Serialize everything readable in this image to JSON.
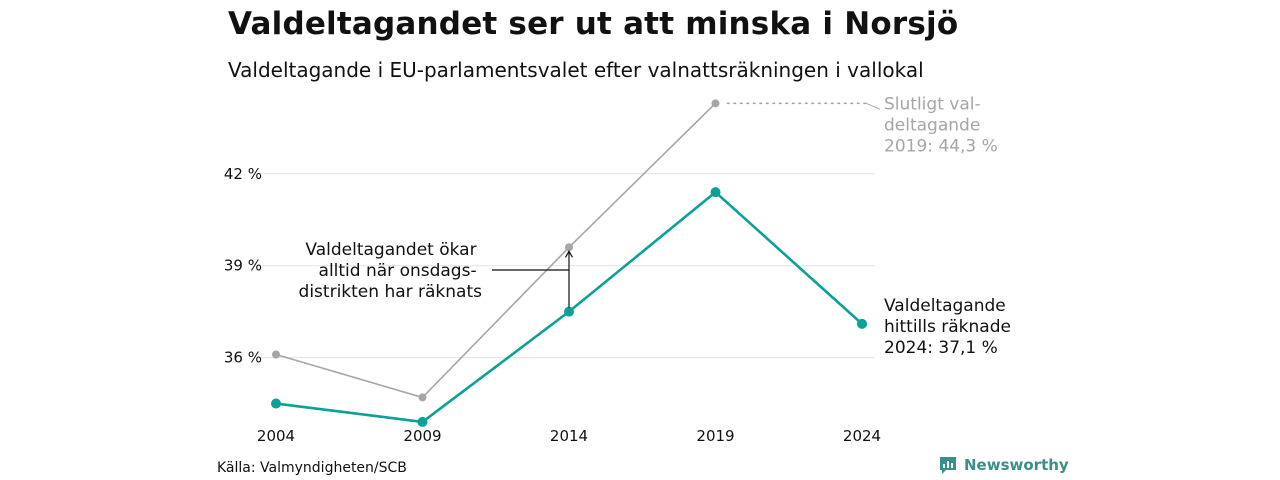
{
  "title": "Valdeltagandet ser ut att minska i Norsjö",
  "subtitle": "Valdeltagande i EU-parlamentsvalet efter valnattsräkningen i vallokal",
  "source": "Källa: Valmyndigheten/SCB",
  "brand": {
    "name": "Newsworthy",
    "icon": "newsworthy-logo-icon",
    "color": "#3a8f8a"
  },
  "colors": {
    "current": "#0aa197",
    "final": "#a6a6a6",
    "grid": "#e3e3e3"
  },
  "chart_data": {
    "type": "line",
    "x": [
      2004,
      2009,
      2014,
      2019,
      2024
    ],
    "x_tick_labels": [
      "2004",
      "2009",
      "2014",
      "2019",
      "2024"
    ],
    "ylim": [
      33.8,
      44.8
    ],
    "y_ticks": [
      36,
      39,
      42
    ],
    "y_tick_labels": [
      "36 %",
      "39 %",
      "42 %"
    ],
    "grid": true,
    "series": [
      {
        "key": "final",
        "values": [
          36.1,
          34.7,
          39.6,
          44.3,
          null
        ]
      },
      {
        "key": "current",
        "values": [
          34.5,
          33.9,
          37.5,
          41.4,
          37.1
        ]
      }
    ],
    "annotations": {
      "final_label": [
        "Slutligt val-",
        "deltagande",
        "2019: 44,3 %"
      ],
      "current_label": [
        "Valdeltagande",
        "hittills räknade",
        "2024: 37,1 %"
      ],
      "note_label": [
        "Valdeltagandet ökar",
        "alltid när onsdags-",
        "distrikten har räknats"
      ]
    }
  }
}
